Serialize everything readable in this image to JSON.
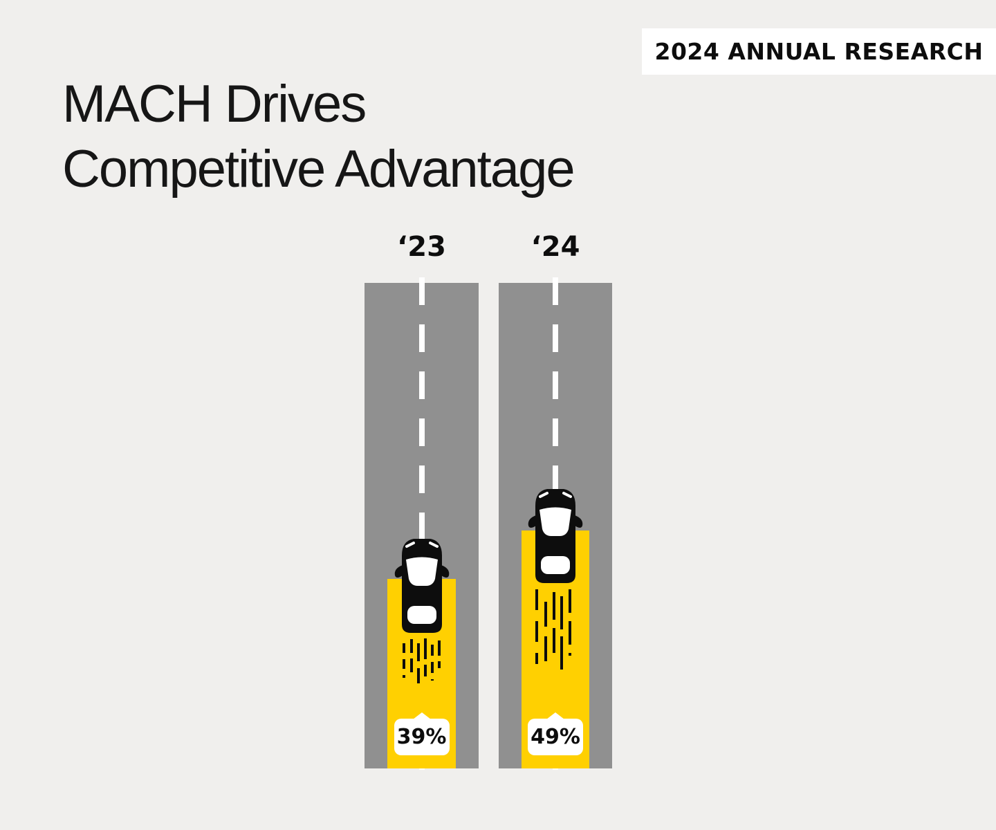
{
  "badge": {
    "label": "2024 ANNUAL RESEARCH"
  },
  "title": {
    "line1": "MACH Drives",
    "line2": "Competitive Advantage"
  },
  "chart_data": {
    "type": "bar",
    "title": "MACH Drives Competitive Advantage",
    "categories": [
      "‘23",
      "‘24"
    ],
    "values": [
      39,
      49
    ],
    "value_labels": [
      "39%",
      "49%"
    ],
    "unit": "%",
    "ylim": [
      0,
      100
    ],
    "orientation": "vertical",
    "legend": "none",
    "colors": {
      "bar": "#FFD001",
      "road": "#909090",
      "background": "#F0EFED",
      "text": "#0D0D0D",
      "value_label_background": "#FFFFFF",
      "lane_line": "#FFFFFF"
    }
  }
}
